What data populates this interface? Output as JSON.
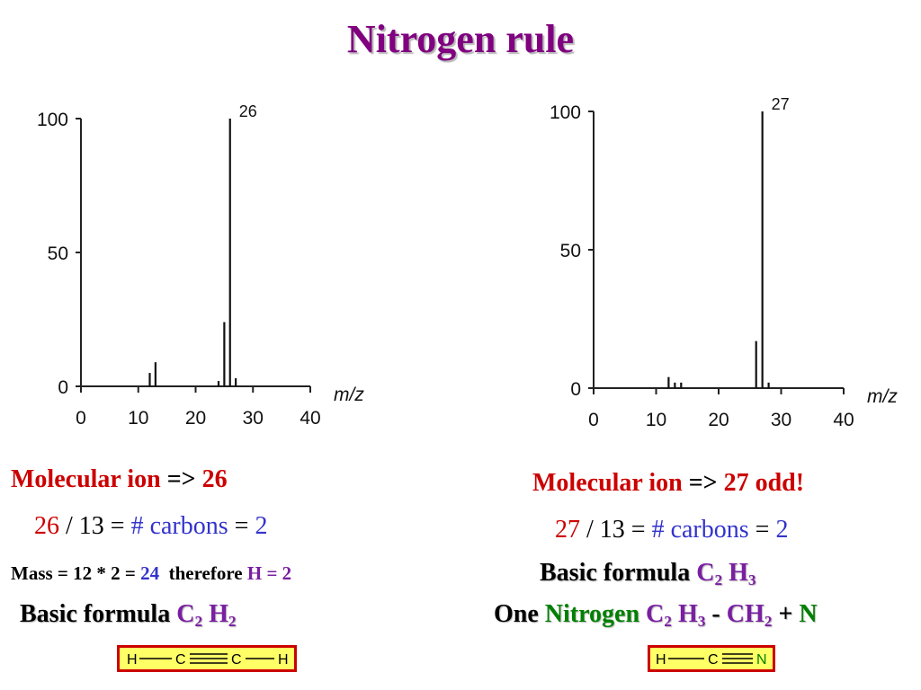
{
  "title": "Nitrogen rule",
  "chart_data": [
    {
      "type": "bar",
      "xlabel": "m/z",
      "ylabel": "",
      "xlim": [
        0,
        40
      ],
      "ylim": [
        0,
        100
      ],
      "xticks": [
        "0",
        "10",
        "20",
        "30",
        "40"
      ],
      "yticks": [
        "0",
        "50",
        "100"
      ],
      "peaks": [
        {
          "x": 12,
          "y": 5
        },
        {
          "x": 13,
          "y": 9
        },
        {
          "x": 24,
          "y": 2
        },
        {
          "x": 25,
          "y": 24
        },
        {
          "x": 26,
          "y": 100,
          "label": "26"
        },
        {
          "x": 27,
          "y": 3
        }
      ]
    },
    {
      "type": "bar",
      "xlabel": "m/z",
      "ylabel": "",
      "xlim": [
        0,
        40
      ],
      "ylim": [
        0,
        100
      ],
      "xticks": [
        "0",
        "10",
        "20",
        "30",
        "40"
      ],
      "yticks": [
        "0",
        "50",
        "100"
      ],
      "peaks": [
        {
          "x": 12,
          "y": 4
        },
        {
          "x": 13,
          "y": 2
        },
        {
          "x": 14,
          "y": 2
        },
        {
          "x": 26,
          "y": 17
        },
        {
          "x": 27,
          "y": 100,
          "label": "27"
        },
        {
          "x": 28,
          "y": 2
        }
      ]
    }
  ],
  "left": {
    "mol_ion_label": "Molecular ion",
    "arrow": "=>",
    "mol_ion_value": "26",
    "calc_mass": "26",
    "calc_div": "/ 13 =",
    "calc_carbons": "# carbons",
    "calc_eq": "=",
    "calc_result": "2",
    "mass_text": "Mass = 12 * 2 =",
    "mass_value": "24",
    "therefore": "therefore",
    "h_value": "H = 2",
    "formula_label": "Basic formula",
    "formula_c": "C",
    "formula_c_sub": "2",
    "formula_h": "H",
    "formula_h_sub": "2",
    "structure": [
      "H",
      "C",
      "C",
      "H"
    ]
  },
  "right": {
    "mol_ion_label": "Molecular ion",
    "arrow": "=>",
    "mol_ion_value": "27 odd!",
    "calc_mass": "27",
    "calc_div": "/ 13 =",
    "calc_carbons": "# carbons",
    "calc_eq": "=",
    "calc_result": "2",
    "formula_label": "Basic formula",
    "formula_c": "C",
    "formula_c_sub": "2",
    "formula_h": "H",
    "formula_h_sub": "3",
    "one": "One",
    "nitrogen": "Nitrogen",
    "n_c": "C",
    "n_c_sub": "2",
    "n_h": "H",
    "n_h_sub": "3",
    "minus": "-",
    "ch": "CH",
    "ch_sub": "2",
    "plus": "+",
    "n": "N",
    "structure": [
      "H",
      "C",
      "N"
    ]
  },
  "colors": {
    "title": "#800080",
    "red": "#cc0000",
    "blue": "#3333cc",
    "purple": "#7a1fa2",
    "green": "#008000",
    "structure_bg": "#ffff66"
  }
}
